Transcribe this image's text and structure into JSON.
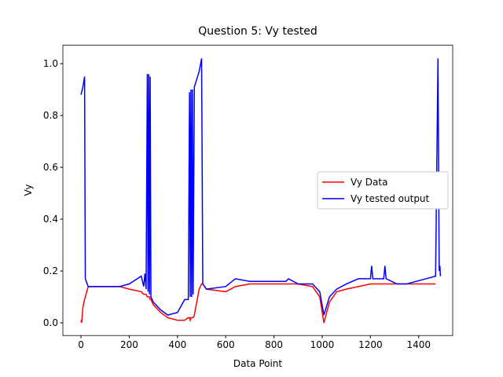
{
  "chart_data": {
    "type": "line",
    "title": "Question 5: Vy tested",
    "x_label": "Data Point",
    "y_label": "Vy",
    "x": [
      0,
      3,
      8,
      15,
      18,
      30,
      160,
      200,
      250,
      260,
      265,
      270,
      275,
      278,
      281,
      284,
      287,
      290,
      300,
      330,
      360,
      400,
      430,
      445,
      450,
      453,
      456,
      459,
      462,
      465,
      470,
      480,
      490,
      500,
      505,
      520,
      600,
      640,
      700,
      850,
      860,
      900,
      960,
      990,
      1007,
      1030,
      1060,
      1100,
      1150,
      1200,
      1205,
      1210,
      1255,
      1260,
      1265,
      1310,
      1350,
      1430,
      1470,
      1480,
      1485,
      1488,
      1490
    ],
    "series": [
      {
        "name": "Vy Data",
        "color": "#ff0000",
        "values": [
          0.01,
          0.0,
          0.06,
          0.09,
          0.1,
          0.14,
          0.14,
          0.13,
          0.12,
          0.11,
          0.11,
          0.11,
          0.1,
          0.1,
          0.1,
          0.1,
          0.09,
          0.09,
          0.07,
          0.04,
          0.02,
          0.01,
          0.01,
          0.02,
          0.02,
          0.01,
          0.02,
          0.02,
          0.02,
          0.02,
          0.03,
          0.08,
          0.13,
          0.15,
          0.15,
          0.13,
          0.12,
          0.14,
          0.15,
          0.15,
          0.15,
          0.15,
          0.14,
          0.1,
          0.0,
          0.08,
          0.12,
          0.13,
          0.14,
          0.15,
          0.15,
          0.15,
          0.15,
          0.15,
          0.15,
          0.15,
          0.15,
          0.15,
          0.15,
          null,
          null,
          null,
          null
        ]
      },
      {
        "name": "Vy tested output",
        "color": "#0000ff",
        "values": [
          0.88,
          0.89,
          0.91,
          0.95,
          0.17,
          0.14,
          0.14,
          0.15,
          0.18,
          0.14,
          0.19,
          0.13,
          0.96,
          0.12,
          0.96,
          0.11,
          0.95,
          0.1,
          0.08,
          0.05,
          0.03,
          0.04,
          0.09,
          0.09,
          0.89,
          0.1,
          0.9,
          0.1,
          0.9,
          0.11,
          0.91,
          0.94,
          0.97,
          1.02,
          0.15,
          0.13,
          0.14,
          0.17,
          0.16,
          0.16,
          0.17,
          0.15,
          0.15,
          0.12,
          0.03,
          0.1,
          0.13,
          0.15,
          0.17,
          0.17,
          0.22,
          0.17,
          0.17,
          0.22,
          0.17,
          0.15,
          0.15,
          0.17,
          0.18,
          1.02,
          0.2,
          0.22,
          0.18
        ]
      }
    ],
    "xlim": [
      -75,
      1541
    ],
    "ylim": [
      -0.049,
      1.071
    ],
    "xticks": [
      0,
      200,
      400,
      600,
      800,
      1000,
      1200,
      1400
    ],
    "yticks": [
      {
        "value": 0,
        "label": "0.0"
      },
      {
        "value": 0.2,
        "label": "0.2"
      },
      {
        "value": 0.4,
        "label": "0.4"
      },
      {
        "value": 0.6,
        "label": "0.6"
      },
      {
        "value": 0.8,
        "label": "0.8"
      },
      {
        "value": 1,
        "label": "1.0"
      }
    ],
    "legend": "center right"
  }
}
